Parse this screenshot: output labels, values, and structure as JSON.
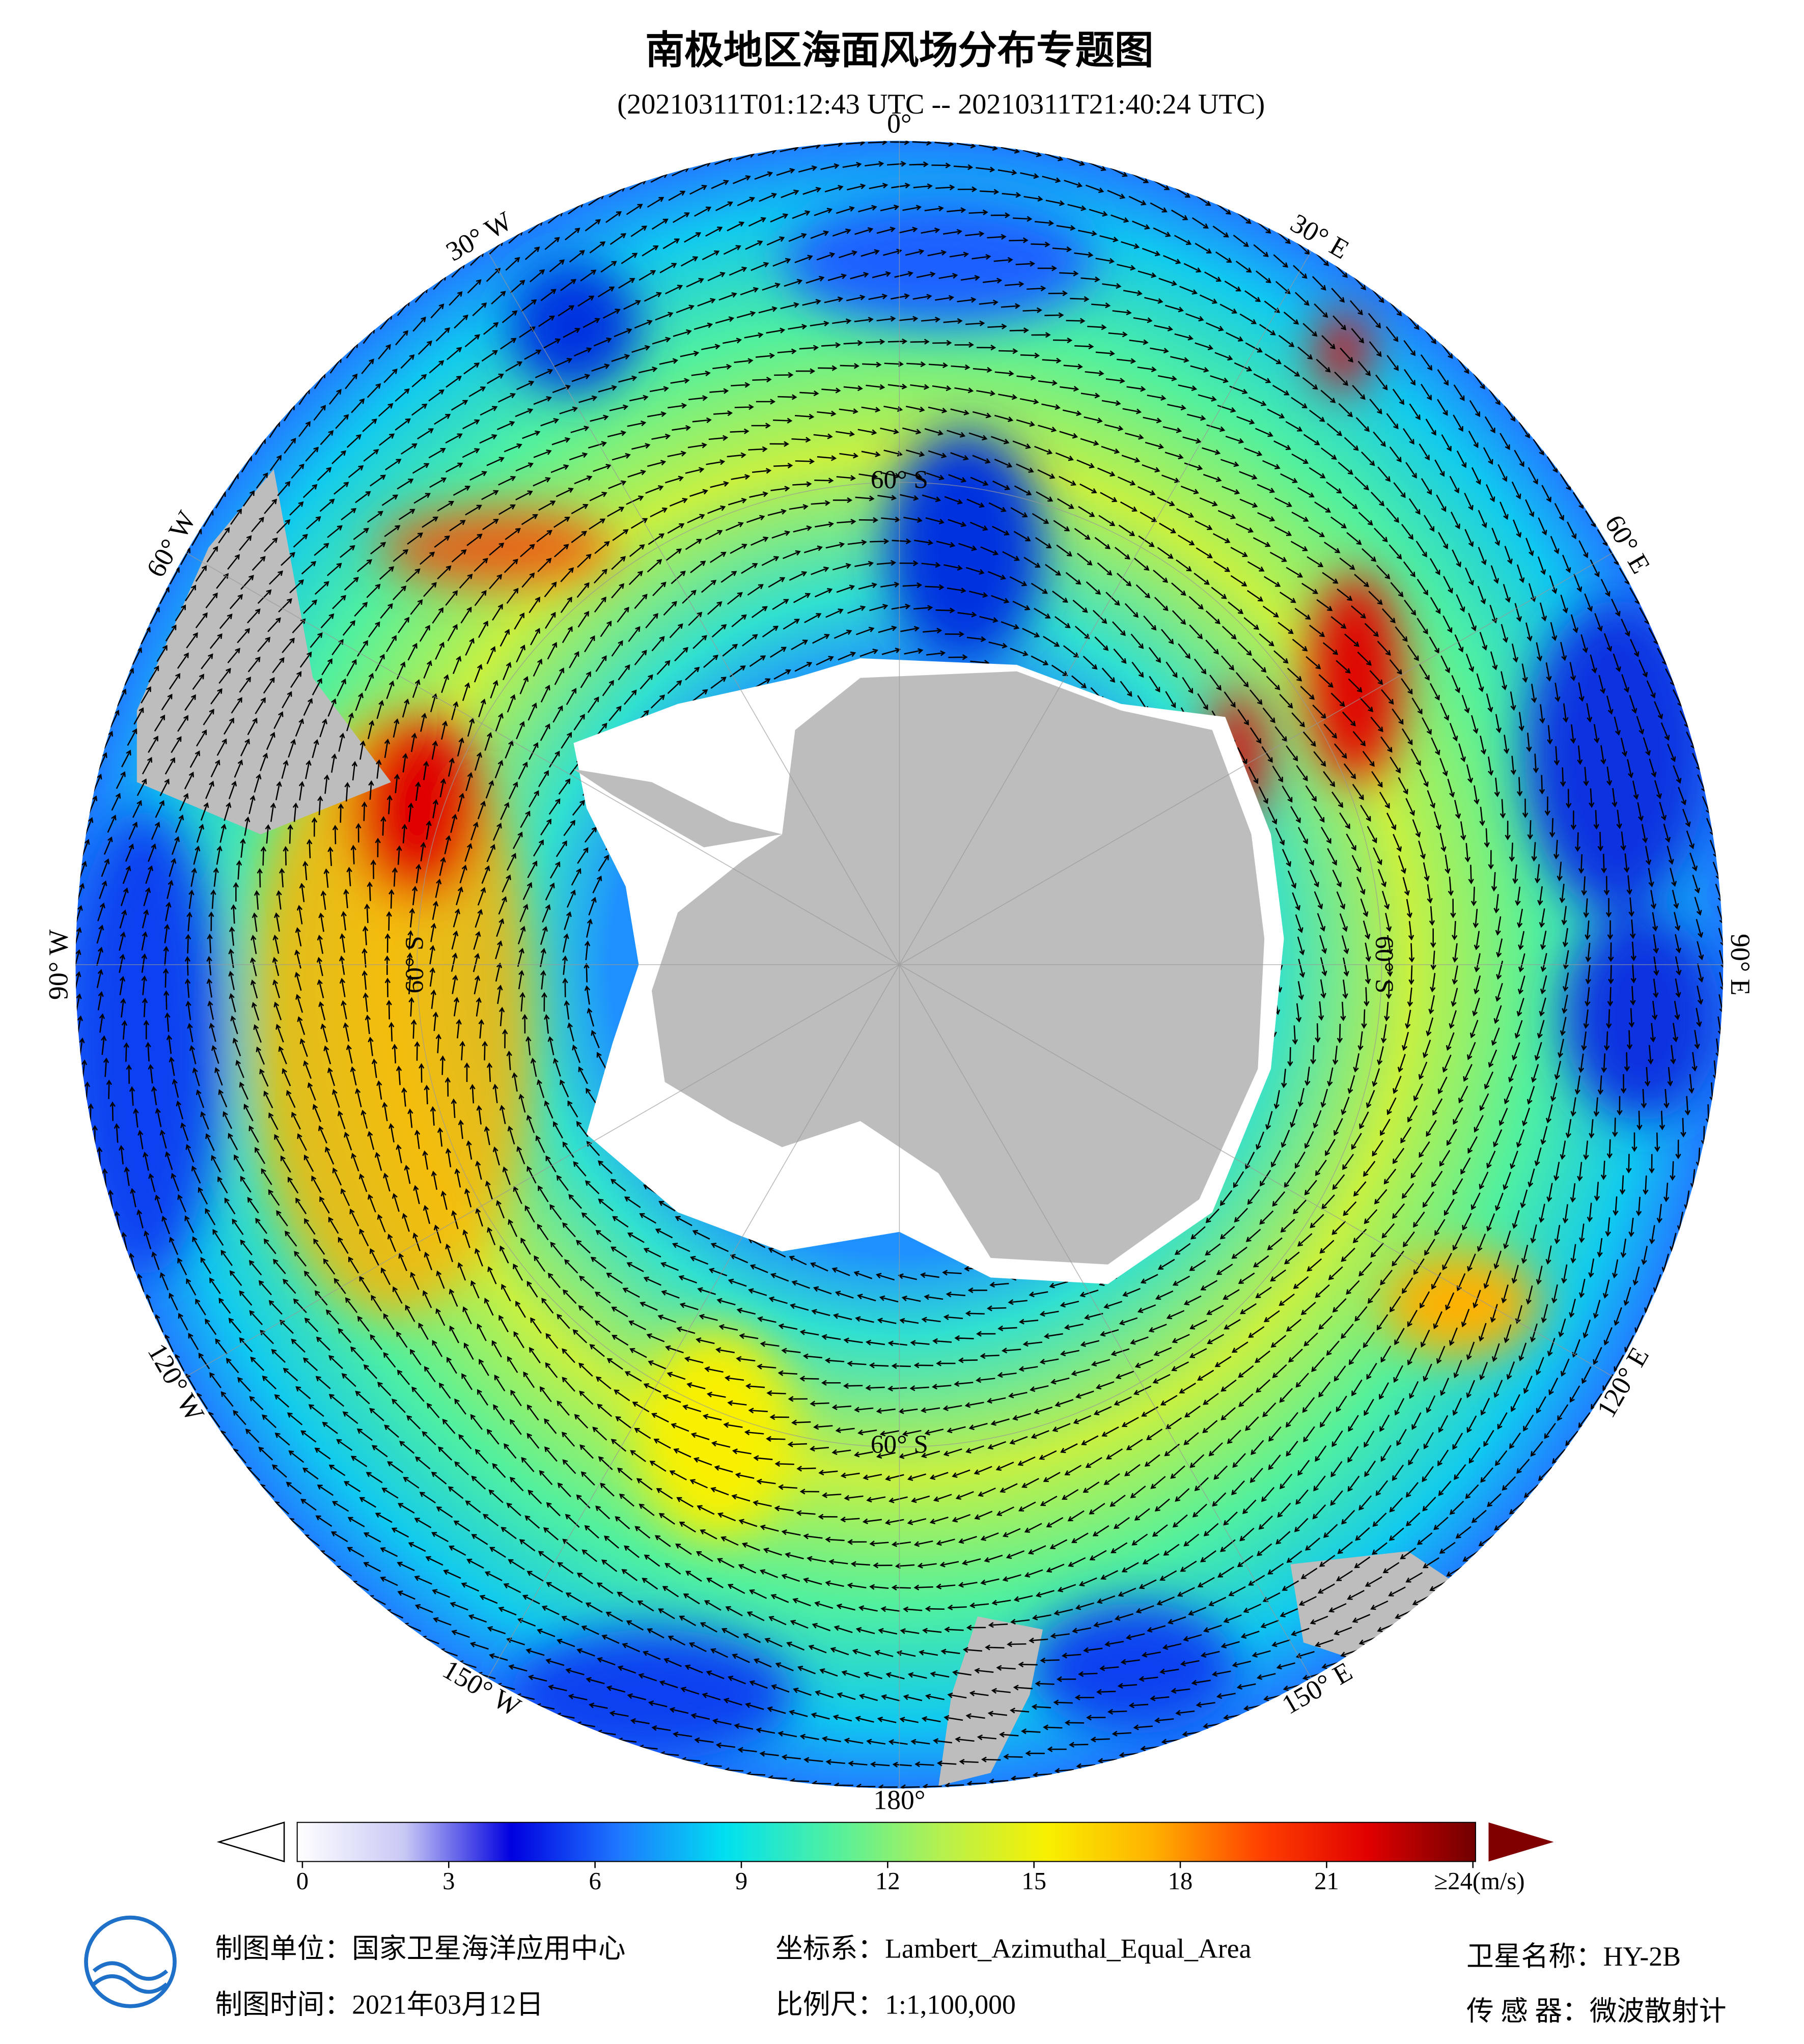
{
  "title": "南极地区海面风场分布专题图",
  "subtitle": "(20210311T01:12:43 UTC -- 20210311T21:40:24 UTC)",
  "map": {
    "longitude_labels": [
      "0°",
      "30° E",
      "60° E",
      "90° E",
      "120° E",
      "150° E",
      "180°",
      "150° W",
      "120° W",
      "90° W",
      "60° W",
      "30° W"
    ],
    "latitude_labels": [
      "60° S",
      "60° S",
      "60° S",
      "60° S"
    ]
  },
  "colorbar": {
    "range": [
      0,
      24
    ],
    "ticks": [
      0,
      3,
      6,
      9,
      12,
      15,
      18,
      21,
      {
        "value": 24,
        "label": "≥24(m/s)"
      }
    ],
    "colors": [
      "#ffffff",
      "#c8c8f5",
      "#0000e0",
      "#1e78ff",
      "#00e0f0",
      "#50f0a0",
      "#b4f050",
      "#f8f000",
      "#ffb000",
      "#ff4000",
      "#e00000",
      "#700000"
    ]
  },
  "footer": {
    "producer": "制图单位：国家卫星海洋应用中心",
    "date": "制图时间：2021年03月12日",
    "projection": "坐标系：Lambert_Azimuthal_Equal_Area",
    "scale": "比例尺：1:1,100,000",
    "satellite": "卫星名称：HY-2B",
    "sensor": "传 感 器：微波散射计"
  }
}
